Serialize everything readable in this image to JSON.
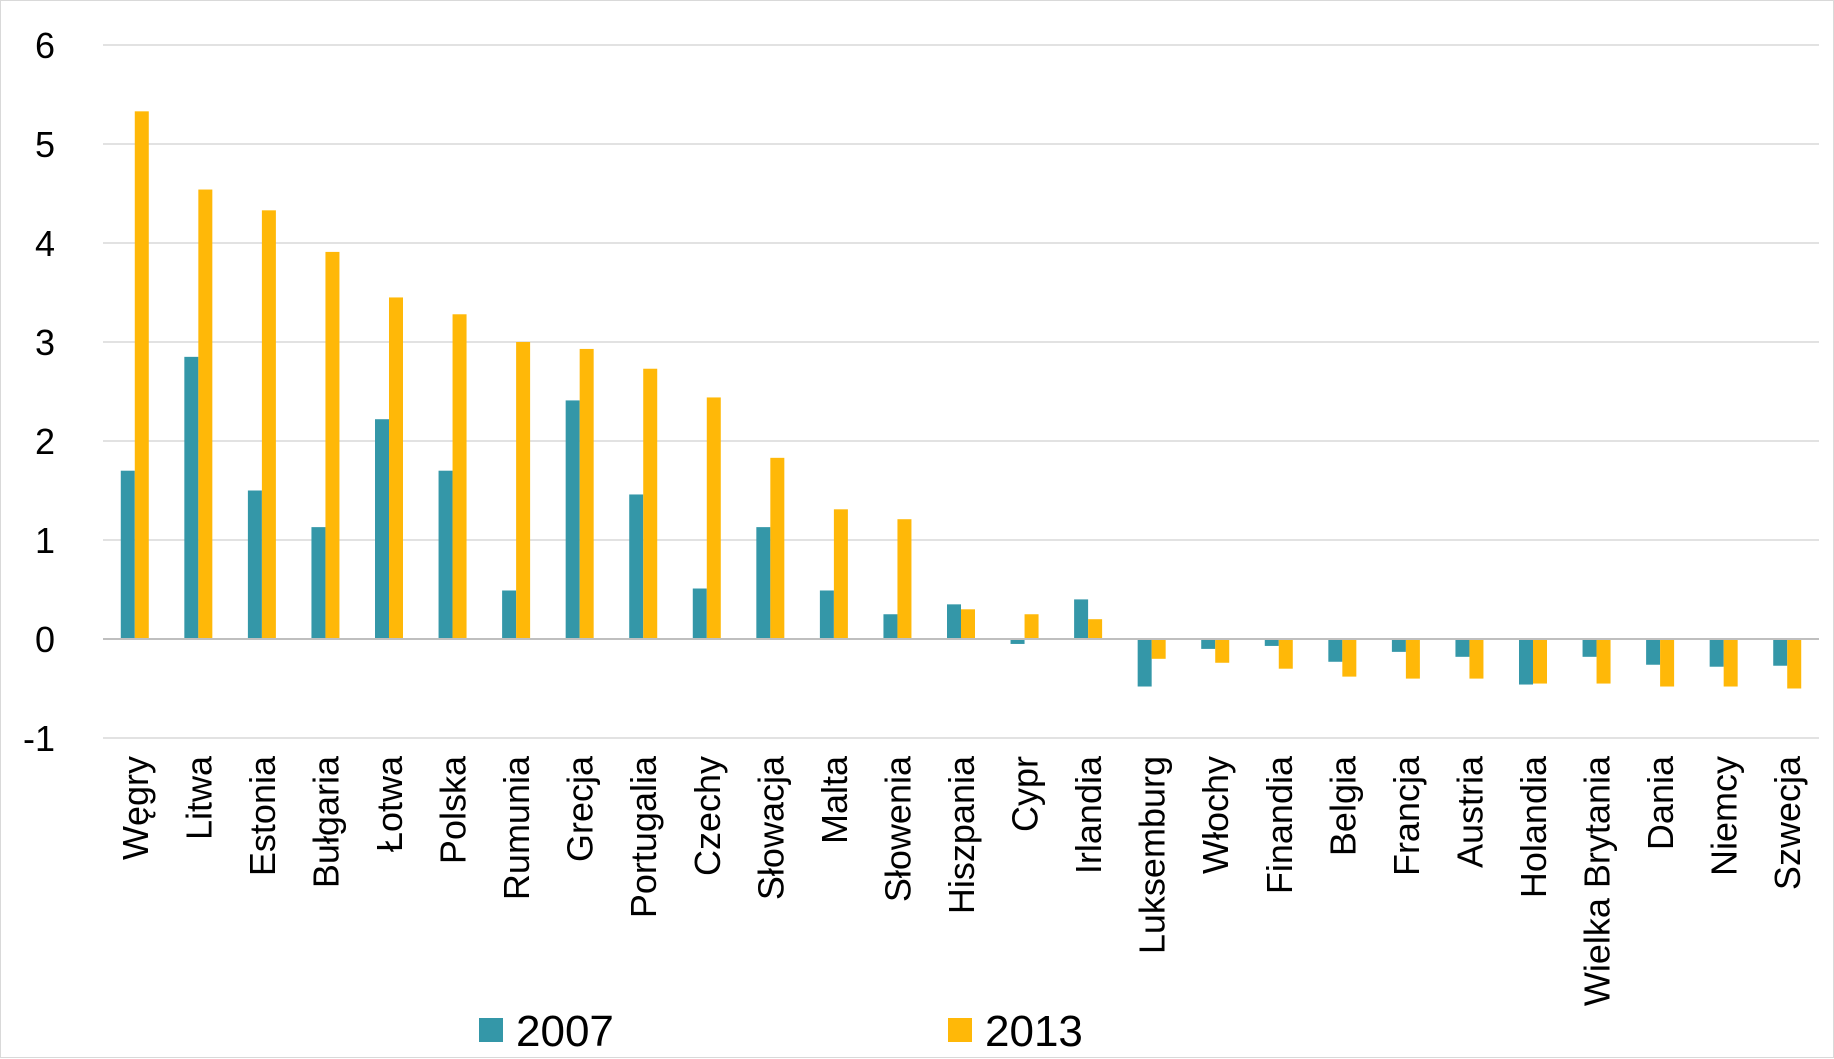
{
  "chart_data": {
    "type": "bar",
    "title": "",
    "xlabel": "",
    "ylabel": "",
    "ylim": [
      -1,
      6
    ],
    "yticks": [
      -1,
      0,
      1,
      2,
      3,
      4,
      5,
      6
    ],
    "grid": true,
    "legend_position": "bottom",
    "categories": [
      "Węgry",
      "Litwa",
      "Estonia",
      "Bułgaria",
      "Łotwa",
      "Polska",
      "Rumunia",
      "Grecja",
      "Portugalia",
      "Czechy",
      "Słowacja",
      "Malta",
      "Słowenia",
      "Hiszpania",
      "Cypr",
      "Irlandia",
      "Luksemburg",
      "Włochy",
      "Finandia",
      "Belgia",
      "Francja",
      "Austria",
      "Holandia",
      "Wielka Brytania",
      "Dania",
      "Niemcy",
      "Szwecja"
    ],
    "series": [
      {
        "name": "2007",
        "color": "#3497a8",
        "values": [
          1.7,
          2.85,
          1.5,
          1.13,
          2.22,
          1.7,
          0.49,
          2.41,
          1.46,
          0.51,
          1.13,
          0.49,
          0.25,
          0.35,
          -0.05,
          0.4,
          -0.48,
          -0.1,
          -0.07,
          -0.23,
          -0.13,
          -0.18,
          -0.46,
          -0.18,
          -0.26,
          -0.28,
          -0.27
        ]
      },
      {
        "name": "2013",
        "color": "#ffb808",
        "values": [
          5.33,
          4.54,
          4.33,
          3.91,
          3.45,
          3.28,
          3.0,
          2.93,
          2.73,
          2.44,
          1.83,
          1.31,
          1.21,
          0.3,
          0.25,
          0.2,
          -0.2,
          -0.24,
          -0.3,
          -0.38,
          -0.4,
          -0.4,
          -0.45,
          -0.45,
          -0.48,
          -0.48,
          -0.5
        ]
      }
    ]
  }
}
